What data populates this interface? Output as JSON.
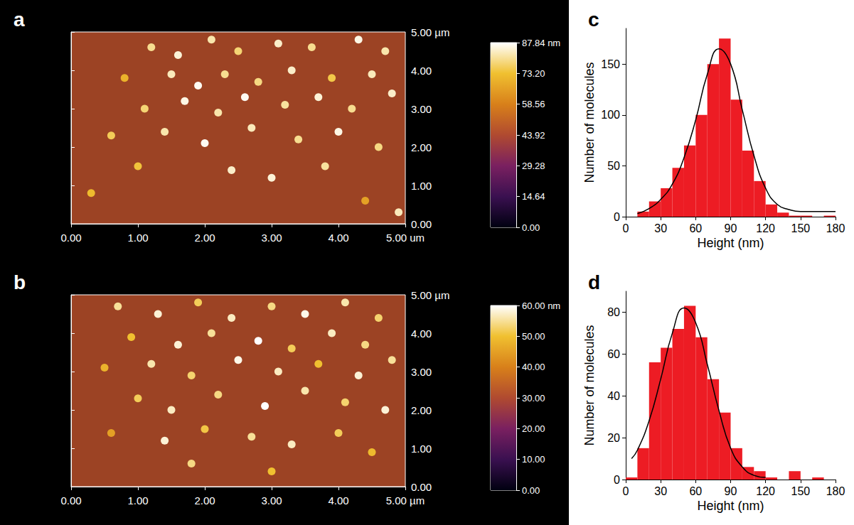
{
  "chart_data": [
    {
      "type": "scatter",
      "title": "a",
      "x": [
        1.2,
        1.6,
        2.1,
        2.5,
        3.1,
        3.6,
        4.3,
        4.7,
        0.8,
        1.5,
        1.9,
        2.3,
        2.8,
        3.3,
        3.9,
        4.5,
        1.1,
        1.7,
        2.2,
        2.6,
        3.2,
        3.7,
        4.2,
        4.8,
        0.6,
        1.4,
        2.0,
        2.7,
        3.4,
        4.0,
        4.6,
        1.0,
        2.4,
        3.0,
        3.8,
        0.3,
        4.4,
        4.9
      ],
      "y": [
        4.6,
        4.4,
        4.8,
        4.5,
        4.7,
        4.6,
        4.8,
        4.5,
        3.8,
        3.9,
        3.6,
        3.9,
        3.7,
        4.0,
        3.8,
        3.9,
        3.0,
        3.2,
        2.9,
        3.3,
        3.1,
        3.3,
        3.0,
        3.4,
        2.3,
        2.4,
        2.1,
        2.5,
        2.2,
        2.4,
        2.0,
        1.5,
        1.4,
        1.2,
        1.5,
        0.8,
        0.6,
        0.3
      ],
      "heights": [
        80,
        85,
        82,
        78,
        84,
        80,
        86,
        82,
        70,
        83,
        87,
        80,
        79,
        84,
        75,
        83,
        78,
        86,
        82,
        87,
        81,
        85,
        80,
        84,
        76,
        82,
        87,
        83,
        80,
        86,
        79,
        74,
        84,
        85,
        81,
        72,
        66,
        83
      ],
      "xlim": [
        0,
        5
      ],
      "xticks": [
        {
          "value": 0,
          "label": "0.00"
        },
        {
          "value": 1,
          "label": "1.00"
        },
        {
          "value": 2,
          "label": "2.00"
        },
        {
          "value": 3,
          "label": "3.00"
        },
        {
          "value": 4,
          "label": "4.00"
        },
        {
          "value": 5,
          "label": "5.00 um"
        }
      ],
      "ylim": [
        0,
        5
      ],
      "yticks": [
        {
          "value": 0,
          "label": "0.00"
        },
        {
          "value": 1,
          "label": "1.00"
        },
        {
          "value": 2,
          "label": "2.00"
        },
        {
          "value": 3,
          "label": "3.00"
        },
        {
          "value": 4,
          "label": "4.00"
        },
        {
          "value": 5,
          "label": "5.00 µm"
        }
      ],
      "colorbar": {
        "range": [
          0,
          87.84
        ],
        "ticks": [
          {
            "value": 0,
            "label": "0.00"
          },
          {
            "value": 14.64,
            "label": "14.64"
          },
          {
            "value": 29.28,
            "label": "29.28"
          },
          {
            "value": 43.92,
            "label": "43.92"
          },
          {
            "value": 58.56,
            "label": "58.56"
          },
          {
            "value": 73.2,
            "label": "73.20"
          },
          {
            "value": 87.84,
            "label": "87.84 nm"
          }
        ]
      }
    },
    {
      "type": "scatter",
      "title": "b",
      "x": [
        0.7,
        1.3,
        1.9,
        2.4,
        3.0,
        3.5,
        4.1,
        4.6,
        0.9,
        1.6,
        2.1,
        2.8,
        3.3,
        3.9,
        4.4,
        0.5,
        1.2,
        1.8,
        2.5,
        3.1,
        3.7,
        4.3,
        4.8,
        1.0,
        1.5,
        2.2,
        2.9,
        3.5,
        4.1,
        4.7,
        0.6,
        1.4,
        2.0,
        2.7,
        3.3,
        4.0,
        4.5,
        1.8,
        3.0
      ],
      "y": [
        4.7,
        4.5,
        4.8,
        4.4,
        4.7,
        4.5,
        4.8,
        4.4,
        3.9,
        3.7,
        4.0,
        3.8,
        3.6,
        4.0,
        3.7,
        3.1,
        3.2,
        2.9,
        3.3,
        3.0,
        3.2,
        2.9,
        3.3,
        2.3,
        2.0,
        2.4,
        2.1,
        2.5,
        2.2,
        2.0,
        1.4,
        1.2,
        1.5,
        1.3,
        1.1,
        1.4,
        0.9,
        0.6,
        0.4
      ],
      "heights": [
        55,
        58,
        52,
        57,
        54,
        59,
        56,
        53,
        50,
        58,
        55,
        60,
        52,
        57,
        54,
        48,
        56,
        53,
        59,
        57,
        50,
        58,
        55,
        52,
        57,
        54,
        60,
        56,
        53,
        58,
        45,
        58,
        51,
        55,
        57,
        52,
        49,
        54,
        50
      ],
      "xlim": [
        0,
        5
      ],
      "xticks": [
        {
          "value": 0,
          "label": "0.00"
        },
        {
          "value": 1,
          "label": "1.00"
        },
        {
          "value": 2,
          "label": "2.00"
        },
        {
          "value": 3,
          "label": "3.00"
        },
        {
          "value": 4,
          "label": "4.00"
        },
        {
          "value": 5,
          "label": "5.00 µm"
        }
      ],
      "ylim": [
        0,
        5
      ],
      "yticks": [
        {
          "value": 0,
          "label": "0.00"
        },
        {
          "value": 1,
          "label": "1.00"
        },
        {
          "value": 2,
          "label": "2.00"
        },
        {
          "value": 3,
          "label": "3.00"
        },
        {
          "value": 4,
          "label": "4.00"
        },
        {
          "value": 5,
          "label": "5.00 µm"
        }
      ],
      "colorbar": {
        "range": [
          0,
          60
        ],
        "ticks": [
          {
            "value": 0,
            "label": "0.00"
          },
          {
            "value": 10,
            "label": "10.00"
          },
          {
            "value": 20,
            "label": "20.00"
          },
          {
            "value": 30,
            "label": "30.00"
          },
          {
            "value": 40,
            "label": "40.00"
          },
          {
            "value": 50,
            "label": "50.00"
          },
          {
            "value": 60,
            "label": "60.00 nm"
          }
        ]
      }
    },
    {
      "type": "histogram",
      "title": "c",
      "xlabel": "Height (nm)",
      "ylabel": "Number of molecules",
      "color": "#ed1c24",
      "bins": [
        0,
        10,
        20,
        30,
        40,
        50,
        60,
        70,
        80,
        90,
        100,
        110,
        120,
        130,
        140,
        150,
        160,
        170,
        180
      ],
      "counts": [
        0,
        5,
        15,
        28,
        48,
        70,
        100,
        150,
        175,
        115,
        65,
        35,
        12,
        4,
        1,
        1,
        0,
        1
      ],
      "fit": {
        "x": [
          10,
          20,
          30,
          40,
          50,
          60,
          70,
          80,
          90,
          100,
          110,
          120,
          130,
          140,
          150,
          160,
          170,
          180
        ],
        "values": [
          3,
          8,
          17,
          32,
          58,
          95,
          140,
          165,
          150,
          105,
          60,
          28,
          12,
          7,
          5,
          5,
          5,
          5
        ]
      },
      "xlim": [
        0,
        180
      ],
      "xticks": [
        0,
        30,
        60,
        90,
        120,
        150,
        180
      ],
      "ylim": [
        0,
        185
      ],
      "yticks": [
        0,
        50,
        100,
        150
      ]
    },
    {
      "type": "histogram",
      "title": "d",
      "xlabel": "Height (nm)",
      "ylabel": "Number of molecules",
      "color": "#ed1c24",
      "bins": [
        0,
        10,
        20,
        30,
        40,
        50,
        60,
        70,
        80,
        90,
        100,
        110,
        120,
        130,
        140,
        150,
        160,
        170,
        180
      ],
      "counts": [
        1,
        15,
        56,
        63,
        72,
        83,
        68,
        48,
        32,
        15,
        6,
        4,
        1,
        0,
        4,
        0,
        1,
        0
      ],
      "fit": {
        "x": [
          5,
          10,
          20,
          30,
          40,
          50,
          60,
          70,
          80,
          90,
          100,
          110,
          120
        ],
        "values": [
          10,
          14,
          28,
          48,
          70,
          82,
          75,
          55,
          33,
          15,
          6,
          2,
          1
        ]
      },
      "xlim": [
        0,
        180
      ],
      "xticks": [
        0,
        30,
        60,
        90,
        120,
        150,
        180
      ],
      "ylim": [
        0,
        90
      ],
      "yticks": [
        0,
        20,
        40,
        60,
        80
      ]
    }
  ]
}
